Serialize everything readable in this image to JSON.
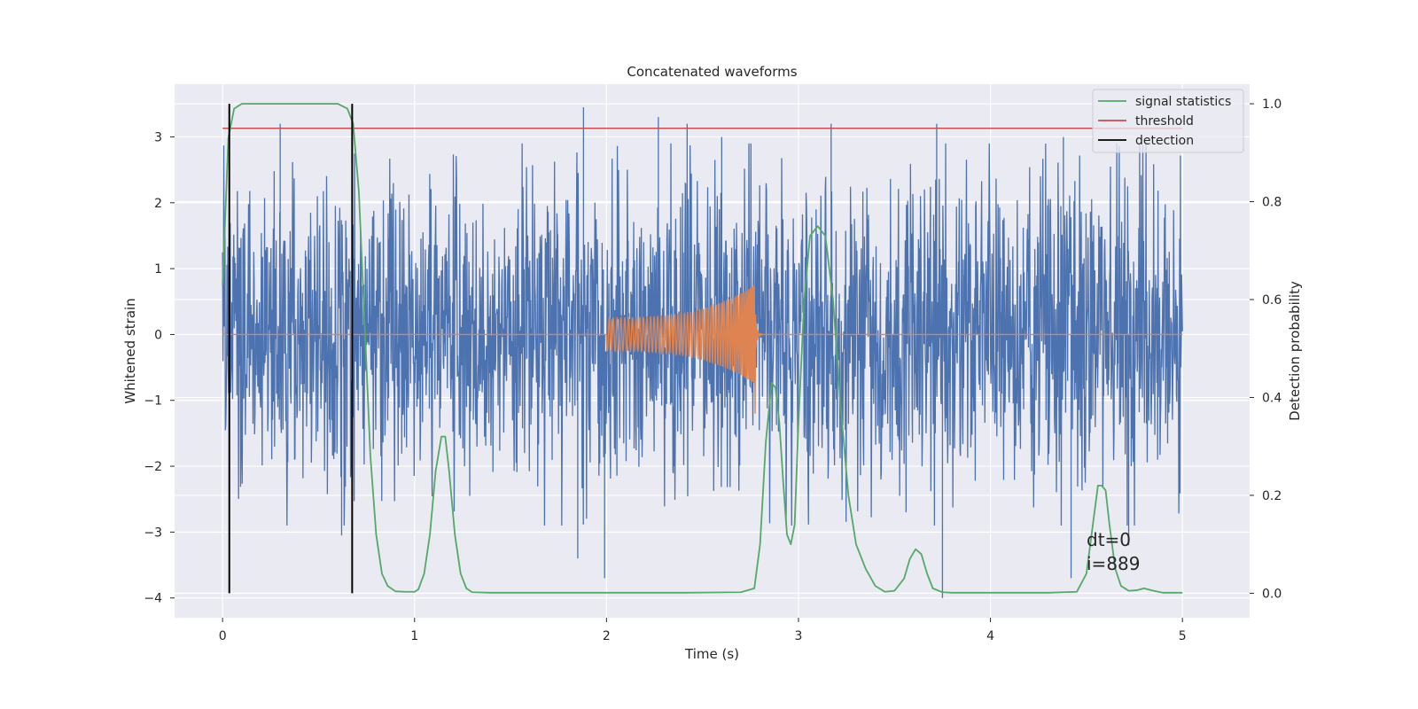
{
  "chart_data": {
    "type": "line",
    "title": "Concatenated waveforms",
    "xlabel": "Time (s)",
    "ylabel": "Whitened strain",
    "y2label": "Detection probability",
    "xlim": [
      -0.25,
      5.35
    ],
    "ylim": [
      -4.3,
      3.8
    ],
    "y2lim": [
      -0.05,
      1.04
    ],
    "grid": true,
    "legend_position": "top-right",
    "x_ticks": [
      "0",
      "1",
      "2",
      "3",
      "4",
      "5"
    ],
    "y_ticks": [
      "−4",
      "−3",
      "−2",
      "−1",
      "0",
      "1",
      "2",
      "3"
    ],
    "y2_ticks": [
      "0.0",
      "0.2",
      "0.4",
      "0.6",
      "0.8",
      "1.0"
    ],
    "legend": [
      {
        "label": "signal statistics",
        "color": "#55a868"
      },
      {
        "label": "threshold",
        "color": "#c44e52"
      },
      {
        "label": "detection",
        "color": "#000000"
      }
    ],
    "annotation": [
      "dt=0",
      "i=889"
    ],
    "series": [
      {
        "kind": "noise",
        "color": "#4c72b0",
        "x_range": [
          0,
          5
        ],
        "envelope_typical": 2.0,
        "peaks": [
          {
            "x": 0.3,
            "y": 3.2
          },
          {
            "x": 1.88,
            "y": 3.45
          },
          {
            "x": 2.27,
            "y": 3.3
          },
          {
            "x": 2.42,
            "y": 3.2
          },
          {
            "x": 2.6,
            "y": 3.0
          },
          {
            "x": 3.17,
            "y": 3.2
          },
          {
            "x": 3.72,
            "y": 3.2
          },
          {
            "x": 4.38,
            "y": 3.0
          },
          {
            "x": 0.62,
            "y": -3.05
          },
          {
            "x": 1.85,
            "y": -3.4
          },
          {
            "x": 1.99,
            "y": -3.7
          },
          {
            "x": 3.75,
            "y": -4.0
          },
          {
            "x": 4.42,
            "y": -3.7
          },
          {
            "x": 4.72,
            "y": -3.2
          }
        ]
      },
      {
        "kind": "chirp",
        "color": "#dd8452",
        "start": 2.0,
        "merger": 2.77,
        "initial_amplitude": 0.25,
        "peak": 0.75,
        "trough": -1.2
      },
      {
        "name": "signal statistics",
        "axis": "y2",
        "color": "#55a868",
        "x": [
          0,
          0.03,
          0.06,
          0.1,
          0.2,
          0.4,
          0.6,
          0.65,
          0.68,
          0.71,
          0.74,
          0.77,
          0.8,
          0.83,
          0.86,
          0.9,
          0.95,
          1.0,
          1.02,
          1.05,
          1.08,
          1.11,
          1.14,
          1.16,
          1.18,
          1.21,
          1.24,
          1.27,
          1.3,
          1.4,
          1.6,
          2.0,
          2.4,
          2.7,
          2.77,
          2.8,
          2.83,
          2.86,
          2.88,
          2.9,
          2.92,
          2.94,
          2.96,
          2.98,
          3.0,
          3.03,
          3.06,
          3.1,
          3.14,
          3.18,
          3.22,
          3.26,
          3.3,
          3.35,
          3.4,
          3.45,
          3.5,
          3.55,
          3.58,
          3.61,
          3.64,
          3.67,
          3.7,
          3.75,
          3.8,
          4.0,
          4.3,
          4.45,
          4.5,
          4.53,
          4.56,
          4.58,
          4.6,
          4.62,
          4.65,
          4.68,
          4.72,
          4.76,
          4.8,
          4.85,
          4.9,
          5.0
        ],
        "values": [
          0.63,
          0.93,
          0.99,
          1.0,
          1.0,
          1.0,
          1.0,
          0.99,
          0.96,
          0.82,
          0.55,
          0.28,
          0.12,
          0.04,
          0.015,
          0.004,
          0.003,
          0.003,
          0.008,
          0.04,
          0.12,
          0.25,
          0.32,
          0.32,
          0.25,
          0.12,
          0.04,
          0.01,
          0.002,
          0.001,
          0.001,
          0.001,
          0.001,
          0.002,
          0.01,
          0.1,
          0.31,
          0.43,
          0.42,
          0.35,
          0.23,
          0.12,
          0.1,
          0.14,
          0.35,
          0.6,
          0.73,
          0.75,
          0.73,
          0.6,
          0.38,
          0.2,
          0.1,
          0.05,
          0.015,
          0.003,
          0.005,
          0.03,
          0.07,
          0.09,
          0.08,
          0.04,
          0.01,
          0.002,
          0.001,
          0.001,
          0.001,
          0.003,
          0.04,
          0.13,
          0.22,
          0.22,
          0.21,
          0.14,
          0.05,
          0.015,
          0.005,
          0.006,
          0.01,
          0.005,
          0.001,
          0.001
        ]
      },
      {
        "name": "threshold",
        "axis": "y2",
        "color": "#c44e52",
        "x": [
          0,
          5
        ],
        "values": [
          0.95,
          0.95
        ]
      },
      {
        "name": "detection",
        "color": "#000000",
        "vlines_x": [
          0.035,
          0.675
        ]
      }
    ]
  }
}
